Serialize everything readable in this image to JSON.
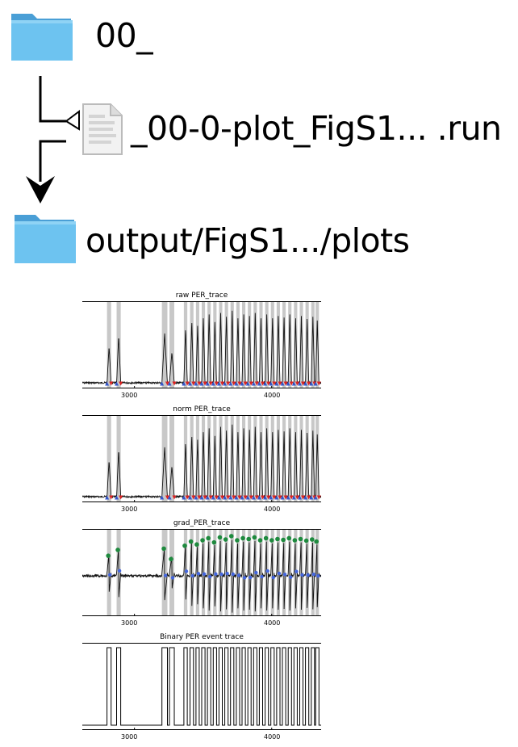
{
  "flow": {
    "source_folder": {
      "label": "00_",
      "icon": "folder-icon",
      "color": "#5bb6ea"
    },
    "script_file": {
      "label": "_00-0-plot_FigS1... .run",
      "icon": "document-icon"
    },
    "output_folder": {
      "label": "output/FigS1.../plots",
      "icon": "folder-icon",
      "color": "#5bb6ea"
    }
  },
  "chart_data": [
    {
      "type": "line",
      "title": "raw PER_trace",
      "x_ticks": [
        "3000",
        "4000"
      ],
      "markers": [
        {
          "shape": "triangle-up",
          "color": "#3355cc"
        },
        {
          "shape": "triangle-down",
          "color": "#dd2222"
        }
      ]
    },
    {
      "type": "line",
      "title": "norm PER_trace",
      "x_ticks": [
        "3000",
        "4000"
      ],
      "markers": [
        {
          "shape": "triangle-up",
          "color": "#3355cc"
        },
        {
          "shape": "triangle-down",
          "color": "#dd2222"
        }
      ]
    },
    {
      "type": "line",
      "title": "grad_PER_trace",
      "x_ticks": [
        "3000",
        "4000"
      ],
      "markers": [
        {
          "shape": "circle",
          "color": "#1e8a3e"
        },
        {
          "shape": "circle",
          "color": "#4466dd"
        }
      ]
    },
    {
      "type": "line",
      "title": "Binary PER event trace",
      "x_ticks": [
        "3000",
        "4000"
      ]
    }
  ],
  "trace": {
    "x_range": [
      2620,
      4360
    ],
    "event_windows": [
      [
        2800,
        2830
      ],
      [
        2870,
        2900
      ],
      [
        3200,
        3240
      ],
      [
        3255,
        3290
      ],
      [
        3360,
        3385
      ],
      [
        3405,
        3430
      ],
      [
        3448,
        3472
      ],
      [
        3490,
        3514
      ],
      [
        3532,
        3556
      ],
      [
        3574,
        3598
      ],
      [
        3616,
        3640
      ],
      [
        3658,
        3682
      ],
      [
        3700,
        3724
      ],
      [
        3742,
        3766
      ],
      [
        3784,
        3808
      ],
      [
        3826,
        3850
      ],
      [
        3868,
        3892
      ],
      [
        3910,
        3934
      ],
      [
        3952,
        3976
      ],
      [
        3994,
        4018
      ],
      [
        4036,
        4060
      ],
      [
        4078,
        4102
      ],
      [
        4120,
        4144
      ],
      [
        4162,
        4186
      ],
      [
        4204,
        4228
      ],
      [
        4246,
        4270
      ],
      [
        4288,
        4312
      ],
      [
        4320,
        4344
      ]
    ],
    "peak_levels": [
      0.48,
      0.62,
      0.65,
      0.4,
      0.72,
      0.82,
      0.75,
      0.85,
      0.9,
      0.8,
      0.92,
      0.87,
      0.95,
      0.85,
      0.9,
      0.88,
      0.92,
      0.85,
      0.9,
      0.85,
      0.88,
      0.86,
      0.9,
      0.85,
      0.88,
      0.84,
      0.87,
      0.82
    ]
  }
}
